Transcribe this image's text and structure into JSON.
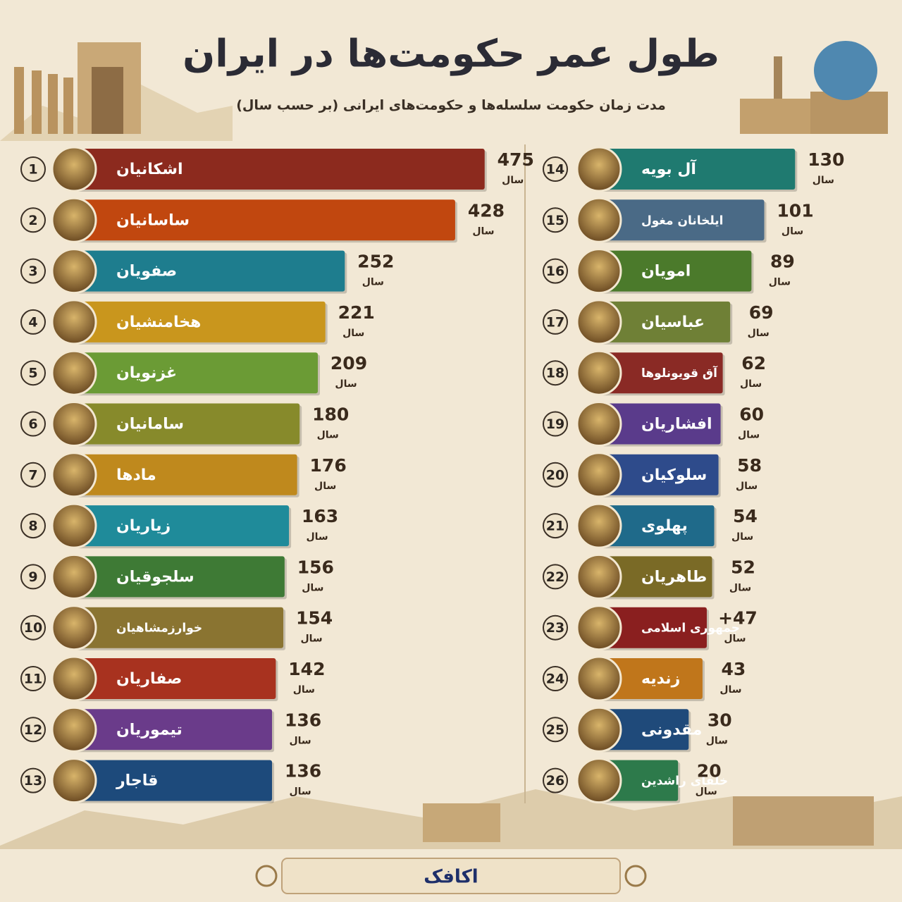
{
  "chart_data": {
    "type": "bar",
    "title": "طول عمر حکومت‌ها در ایران",
    "subtitle": "مدت زمان حکومت سلسله‌ها و حکومت‌های ایرانی (بر حسب سال)",
    "unit": "سال",
    "ranks": [
      1,
      2,
      3,
      4,
      5,
      6,
      7,
      8,
      9,
      10,
      11,
      12,
      13,
      14,
      15,
      16,
      17,
      18,
      19,
      20,
      21,
      22,
      23,
      24,
      25,
      26
    ],
    "categories": [
      "اشکانیان",
      "ساسانیان",
      "صفویان",
      "هخامنشیان",
      "غزنویان",
      "سامانیان",
      "مادها",
      "زیاریان",
      "سلجوقیان",
      "خوارزمشاهیان",
      "صفاریان",
      "تیموریان",
      "قاجار",
      "آل بویه",
      "ایلخانان مغول",
      "امویان",
      "عباسیان",
      "آق قویونلوها",
      "افشاریان",
      "سلوکیان",
      "پهلوی",
      "طاهریان",
      "جمهوری اسلامی",
      "زندیه",
      "مقدونی",
      "خلفای راشدین"
    ],
    "values": [
      475,
      428,
      252,
      221,
      209,
      180,
      176,
      163,
      156,
      154,
      142,
      136,
      136,
      130,
      101,
      89,
      69,
      62,
      60,
      58,
      54,
      52,
      47,
      43,
      30,
      20
    ],
    "value_labels": [
      "475",
      "428",
      "252",
      "221",
      "209",
      "180",
      "176",
      "163",
      "156",
      "154",
      "142",
      "136",
      "136",
      "130",
      "101",
      "89",
      "69",
      "62",
      "60",
      "58",
      "54",
      "52",
      "+47",
      "43",
      "30",
      "20"
    ],
    "colors": [
      "#8c2a1e",
      "#c1470f",
      "#1e7d8e",
      "#c9961d",
      "#6b9b35",
      "#878a2b",
      "#bf891d",
      "#1f8b9a",
      "#3e7a35",
      "#8a7431",
      "#a8321f",
      "#6a3b8a",
      "#1d4a7b",
      "#1f7a70",
      "#4a6a86",
      "#4b7a2b",
      "#6f8036",
      "#8a2a25",
      "#5a3b8b",
      "#2e4b8b",
      "#1f6a8a",
      "#7a6a26",
      "#8a1f1f",
      "#c0761b",
      "#1f4a7a",
      "#2d7a4b"
    ],
    "footer": "اکافک"
  }
}
